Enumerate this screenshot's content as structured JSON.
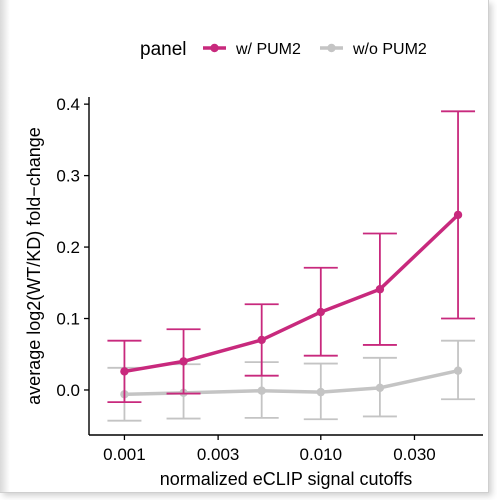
{
  "chart_data": {
    "type": "line",
    "xlabel": "normalized eCLIP signal cutoffs",
    "ylabel": "average log2(WT/KD) fold−change",
    "x_scale": "log",
    "x_ticks": [
      "0.001",
      "0.003",
      "0.010",
      "0.030"
    ],
    "x_tick_values": [
      0.001,
      0.003,
      0.01,
      0.03
    ],
    "y_ticks": [
      "0.0",
      "0.1",
      "0.2",
      "0.3",
      "0.4"
    ],
    "y_tick_values": [
      0,
      0.1,
      0.2,
      0.3,
      0.4
    ],
    "ylim": [
      -0.063,
      0.41
    ],
    "xlim": [
      0.00066,
      0.067
    ],
    "grid": false,
    "legend": {
      "title": "panel",
      "position": "top"
    },
    "x": [
      0.001,
      0.002,
      0.005,
      0.01,
      0.02,
      0.05
    ],
    "series": [
      {
        "name": "w/ PUM2",
        "color": "#c8297d",
        "y": [
          0.026,
          0.04,
          0.07,
          0.109,
          0.141,
          0.245
        ],
        "lower": [
          -0.017,
          -0.005,
          0.02,
          0.048,
          0.063,
          0.1
        ],
        "upper": [
          0.069,
          0.085,
          0.12,
          0.171,
          0.219,
          0.39
        ]
      },
      {
        "name": "w/o PUM2",
        "color": "#c4c4c4",
        "y": [
          -0.006,
          -0.004,
          -0.001,
          -0.003,
          0.003,
          0.027
        ],
        "lower": [
          -0.043,
          -0.04,
          -0.039,
          -0.041,
          -0.037,
          -0.013
        ],
        "upper": [
          0.031,
          0.036,
          0.039,
          0.037,
          0.045,
          0.069
        ]
      }
    ]
  }
}
